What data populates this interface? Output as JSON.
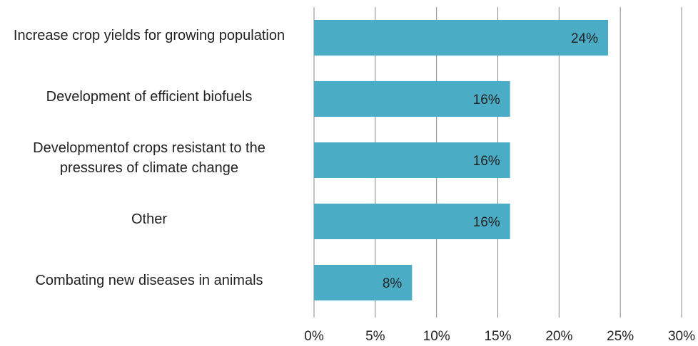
{
  "chart_data": {
    "type": "barh",
    "categories": [
      "Increase crop yields for growing population",
      "Development of efficient biofuels",
      "Developmentof crops resistant to the pressures of climate change",
      "Other",
      "Combating new diseases in animals"
    ],
    "values": [
      24,
      16,
      16,
      16,
      8
    ],
    "value_labels": [
      "24%",
      "16%",
      "16%",
      "16%",
      "8%"
    ],
    "color": "#4bacc6",
    "xlim": [
      0,
      30
    ],
    "xticks": [
      {
        "value": 0,
        "label": "0%"
      },
      {
        "value": 5,
        "label": "5%"
      },
      {
        "value": 10,
        "label": "10%"
      },
      {
        "value": 15,
        "label": "15%"
      },
      {
        "value": 20,
        "label": "20%"
      },
      {
        "value": 25,
        "label": "25%"
      },
      {
        "value": 30,
        "label": "30%"
      }
    ],
    "grid": true
  }
}
